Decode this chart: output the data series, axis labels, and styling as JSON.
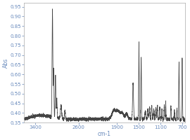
{
  "title": "",
  "ylabel": "Abs",
  "xlabel": "cm-1",
  "xlim": [
    3600,
    650
  ],
  "ylim": [
    0.35,
    0.97
  ],
  "yticks": [
    0.35,
    0.4,
    0.45,
    0.5,
    0.55,
    0.6,
    0.65,
    0.7,
    0.75,
    0.8,
    0.85,
    0.9,
    0.95
  ],
  "xticks": [
    3400,
    2600,
    1900,
    1500,
    1100,
    700
  ],
  "line_color": "#444444",
  "bg_color": "#ffffff",
  "plot_bg": "#ffffff",
  "label_color": "#6688bb",
  "tick_fontsize": 5,
  "label_fontsize": 5.5
}
